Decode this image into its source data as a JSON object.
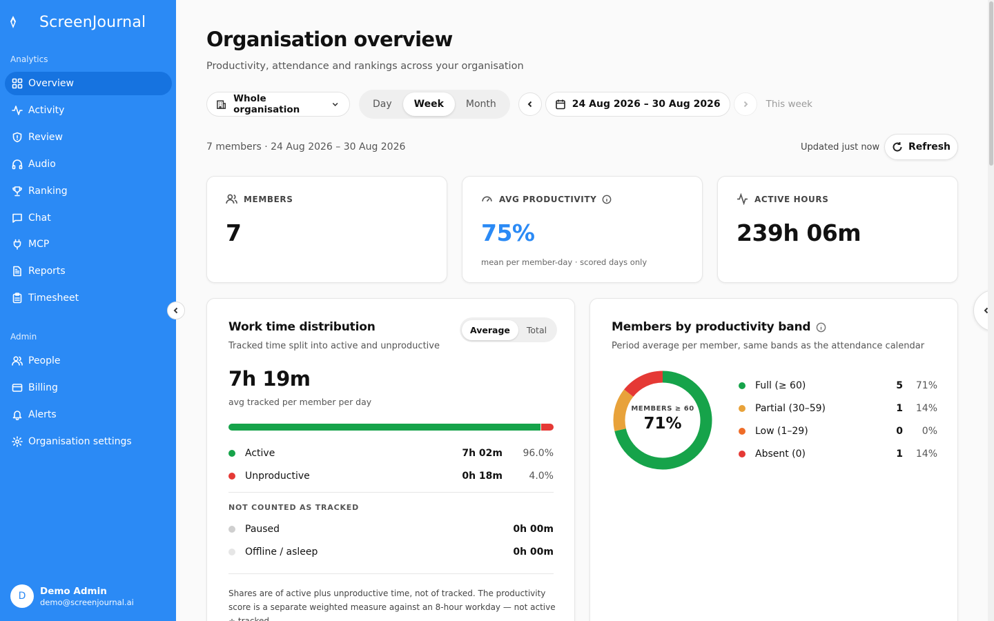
{
  "app": {
    "name": "ScreenJournal"
  },
  "sidebar": {
    "analytics_label": "Analytics",
    "analytics_items": [
      {
        "label": "Overview",
        "icon": "grid-icon",
        "active": true
      },
      {
        "label": "Activity",
        "icon": "activity-icon"
      },
      {
        "label": "Review",
        "icon": "shield-icon"
      },
      {
        "label": "Audio",
        "icon": "headphones-icon"
      },
      {
        "label": "Ranking",
        "icon": "trophy-icon"
      },
      {
        "label": "Chat",
        "icon": "chat-icon"
      },
      {
        "label": "MCP",
        "icon": "plug-icon"
      },
      {
        "label": "Reports",
        "icon": "file-icon"
      },
      {
        "label": "Timesheet",
        "icon": "clipboard-icon"
      }
    ],
    "admin_label": "Admin",
    "admin_items": [
      {
        "label": "People",
        "icon": "users-icon"
      },
      {
        "label": "Billing",
        "icon": "card-icon"
      },
      {
        "label": "Alerts",
        "icon": "bell-icon"
      },
      {
        "label": "Organisation settings",
        "icon": "gear-icon"
      }
    ],
    "user": {
      "initial": "D",
      "name": "Demo Admin",
      "email": "demo@screenjournal.ai"
    }
  },
  "header": {
    "title": "Organisation overview",
    "subtitle": "Productivity, attendance and rankings across your organisation"
  },
  "toolbar": {
    "scope": "Whole organisation",
    "periods": [
      "Day",
      "Week",
      "Month"
    ],
    "active_period": "Week",
    "date_range": "24 Aug 2026 – 30 Aug 2026",
    "this_week": "This week"
  },
  "meta": {
    "summary": "7 members · 24 Aug 2026 – 30 Aug 2026",
    "updated": "Updated just now",
    "refresh_label": "Refresh"
  },
  "kpis": {
    "members": {
      "label": "MEMBERS",
      "value": "7"
    },
    "productivity": {
      "label": "AVG PRODUCTIVITY",
      "value": "75%",
      "note": "mean per member-day · scored days only",
      "color": "#2b8af5"
    },
    "hours": {
      "label": "ACTIVE HOURS",
      "value": "239h 06m"
    }
  },
  "work_time": {
    "title": "Work time distribution",
    "subtitle": "Tracked time split into active and unproductive",
    "toggle": [
      "Average",
      "Total"
    ],
    "toggle_active": "Average",
    "total": "7h 19m",
    "total_note": "avg tracked per member per day",
    "active_share": 0.96,
    "rows": [
      {
        "label": "Active",
        "time": "7h 02m",
        "pct": "96.0%",
        "color": "#16a34a"
      },
      {
        "label": "Unproductive",
        "time": "0h 18m",
        "pct": "4.0%",
        "color": "#e53935"
      }
    ],
    "not_counted_label": "NOT COUNTED AS TRACKED",
    "not_counted": [
      {
        "label": "Paused",
        "time": "0h 00m",
        "color": "#cfcfcf"
      },
      {
        "label": "Offline / asleep",
        "time": "0h 00m",
        "color": "#e6e6e6"
      }
    ],
    "footnote": "Shares are of active plus unproductive time, not of tracked. The productivity score is a separate weighted measure against an 8-hour workday — not active ÷ tracked."
  },
  "bands": {
    "title": "Members by productivity band",
    "subtitle": "Period average per member, same bands as the attendance calendar",
    "center_label": "MEMBERS ≥ 60",
    "center_value": "71%",
    "rows": [
      {
        "label": "Full (≥ 60)",
        "count": "5",
        "pct": "71%",
        "value": 5,
        "color": "#16a34a"
      },
      {
        "label": "Partial (30–59)",
        "count": "1",
        "pct": "14%",
        "value": 1,
        "color": "#e8a23a"
      },
      {
        "label": "Low (1–29)",
        "count": "0",
        "pct": "0%",
        "value": 0,
        "color": "#ef6c28"
      },
      {
        "label": "Absent (0)",
        "count": "1",
        "pct": "14%",
        "value": 1,
        "color": "#e53935"
      }
    ]
  }
}
